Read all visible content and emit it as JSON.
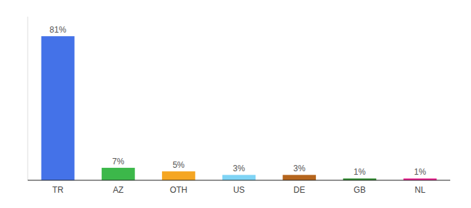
{
  "chart_data": {
    "type": "bar",
    "categories": [
      "TR",
      "AZ",
      "OTH",
      "US",
      "DE",
      "GB",
      "NL"
    ],
    "values": [
      81,
      7,
      5,
      3,
      3,
      1,
      1
    ],
    "value_labels": [
      "81%",
      "7%",
      "5%",
      "3%",
      "3%",
      "1%",
      "1%"
    ],
    "colors": [
      "#4472e8",
      "#3cb84a",
      "#f5a623",
      "#7fd4f5",
      "#b5651d",
      "#2d8a2d",
      "#e91e8c"
    ],
    "ylim": [
      0,
      92
    ],
    "data_labels": true,
    "tick_labels": "x",
    "grid": false
  }
}
